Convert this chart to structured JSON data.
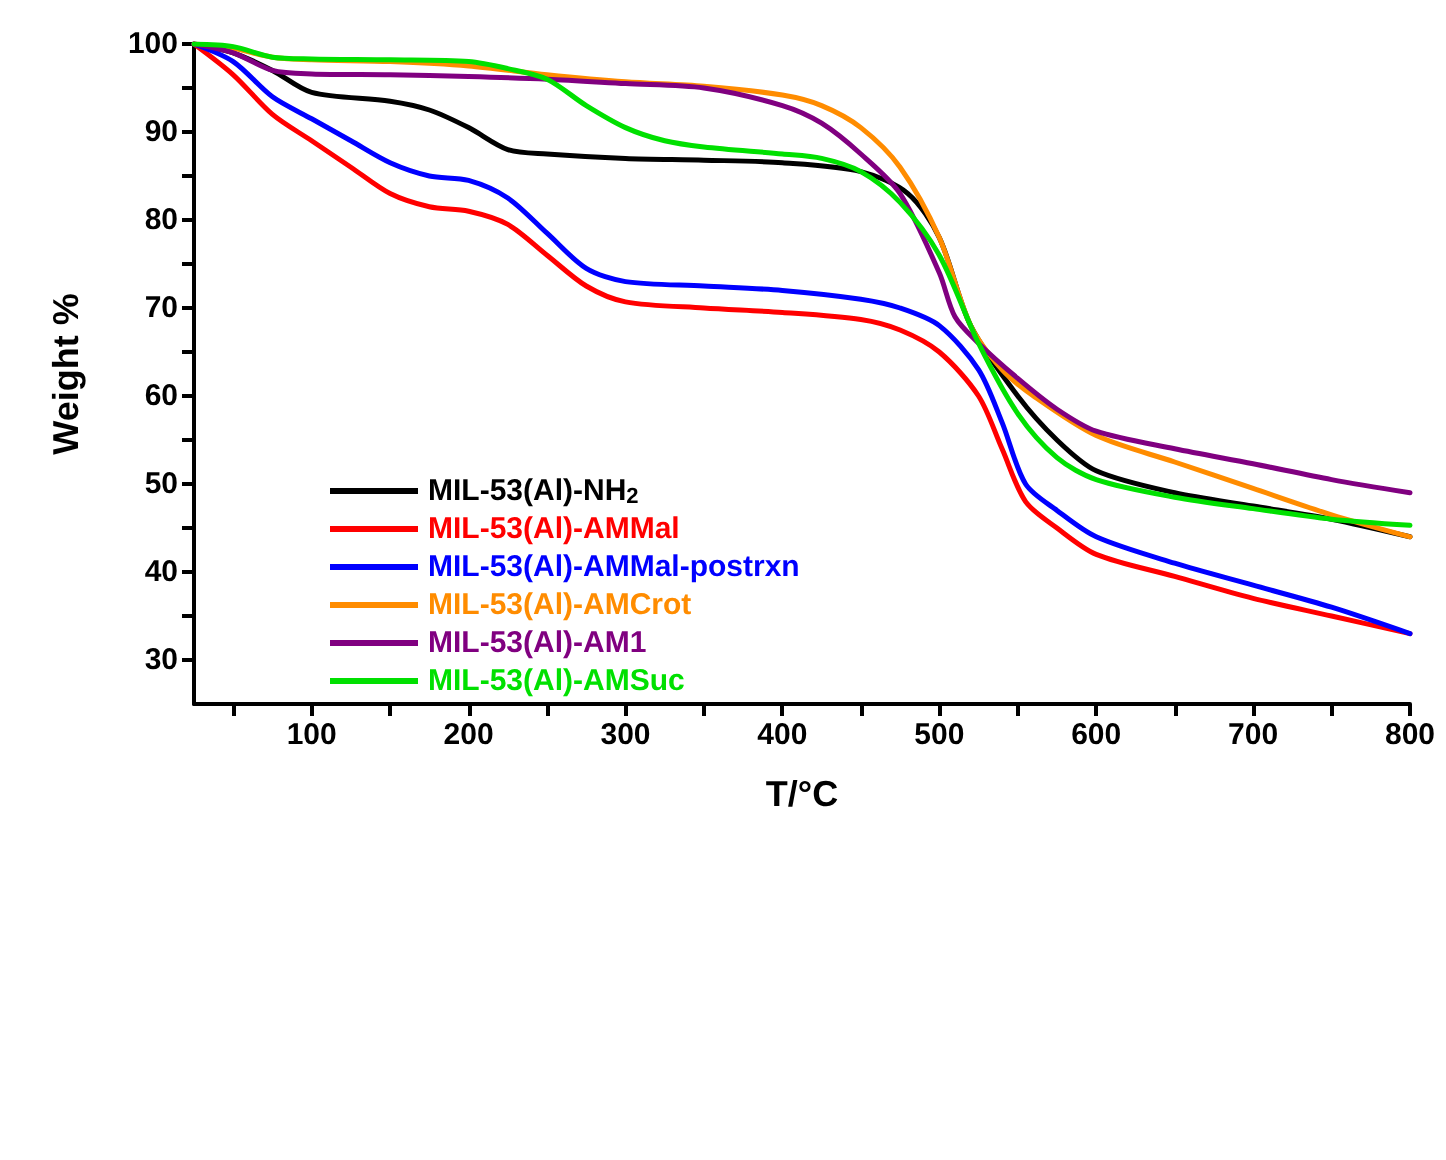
{
  "chart_data": {
    "type": "line",
    "xlabel": "T/°C",
    "ylabel": "Weight %",
    "xlim": [
      25,
      800
    ],
    "ylim": [
      25,
      100
    ],
    "xticks": [
      {
        "value": 50,
        "label": null
      },
      100,
      {
        "value": 150,
        "label": null
      },
      200,
      {
        "value": 250,
        "label": null
      },
      300,
      {
        "value": 350,
        "label": null
      },
      400,
      {
        "value": 450,
        "label": null
      },
      500,
      {
        "value": 550,
        "label": null
      },
      600,
      {
        "value": 650,
        "label": null
      },
      700,
      {
        "value": 750,
        "label": null
      },
      800
    ],
    "yticks": [
      30,
      {
        "value": 35,
        "label": null
      },
      40,
      {
        "value": 45,
        "label": null
      },
      50,
      {
        "value": 55,
        "label": null
      },
      60,
      {
        "value": 65,
        "label": null
      },
      70,
      {
        "value": 75,
        "label": null
      },
      80,
      {
        "value": 85,
        "label": null
      },
      90,
      {
        "value": 95,
        "label": null
      },
      100
    ],
    "grid": false,
    "legend": "bottom left",
    "marker": "none",
    "line_style": "solid",
    "series": [
      {
        "name": "MIL-53(Al)-NH$_{2}$",
        "color": "#000000",
        "x": [
          25,
          50,
          75,
          100,
          150,
          175,
          200,
          225,
          250,
          300,
          350,
          400,
          450,
          480,
          500,
          520,
          550,
          575,
          600,
          650,
          700,
          750,
          800
        ],
        "values": [
          100,
          99,
          97,
          94.5,
          93.5,
          92.5,
          90.5,
          88,
          87.5,
          87,
          86.8,
          86.5,
          85.5,
          83,
          78,
          68,
          60,
          55,
          51.5,
          49,
          47.5,
          46,
          44
        ]
      },
      {
        "name": "MIL-53(Al)-AMMal",
        "color": "#ff0000",
        "x": [
          25,
          50,
          75,
          100,
          125,
          150,
          175,
          200,
          225,
          250,
          275,
          300,
          350,
          400,
          450,
          475,
          500,
          525,
          540,
          555,
          575,
          600,
          650,
          700,
          750,
          800
        ],
        "values": [
          100,
          96.5,
          92,
          89,
          86,
          83,
          81.5,
          81,
          79.5,
          76,
          72.5,
          70.7,
          70,
          69.5,
          68.7,
          67.5,
          65,
          60,
          54,
          48,
          45,
          42,
          39.5,
          37,
          35,
          33
        ]
      },
      {
        "name": "MIL-53(Al)-AMMal-postrxn",
        "color": "#0000ff",
        "x": [
          25,
          50,
          75,
          100,
          125,
          150,
          175,
          200,
          225,
          250,
          275,
          300,
          350,
          400,
          450,
          475,
          500,
          525,
          540,
          555,
          575,
          600,
          650,
          700,
          750,
          800
        ],
        "values": [
          100,
          98,
          94,
          91.5,
          89,
          86.5,
          85,
          84.5,
          82.5,
          78.5,
          74.5,
          73,
          72.5,
          72,
          71,
          70,
          68,
          63,
          57,
          50,
          47,
          44,
          41,
          38.5,
          36,
          33
        ]
      },
      {
        "name": "MIL-53(Al)-AMCrot",
        "color": "#ff8c00",
        "x": [
          25,
          50,
          75,
          100,
          150,
          200,
          250,
          300,
          350,
          400,
          425,
          450,
          475,
          500,
          520,
          540,
          560,
          600,
          650,
          700,
          750,
          800
        ],
        "values": [
          100,
          99.5,
          98.5,
          98.2,
          98,
          97.5,
          96.5,
          95.7,
          95.2,
          94.2,
          93,
          90.5,
          86,
          78,
          68,
          63,
          60,
          55.5,
          52.5,
          49.5,
          46.5,
          44
        ]
      },
      {
        "name": "MIL-53(Al)-AM1",
        "color": "#800080",
        "x": [
          25,
          50,
          75,
          100,
          150,
          200,
          250,
          300,
          350,
          400,
          425,
          450,
          475,
          500,
          510,
          525,
          550,
          575,
          600,
          650,
          700,
          750,
          800
        ],
        "values": [
          100,
          99,
          97,
          96.6,
          96.5,
          96.3,
          96,
          95.5,
          95,
          93,
          91,
          87.5,
          83,
          74,
          69,
          66,
          62,
          58.5,
          56,
          54,
          52.3,
          50.5,
          49
        ]
      },
      {
        "name": "MIL-53(Al)-AMSuc",
        "color": "#00e000",
        "x": [
          25,
          50,
          75,
          100,
          150,
          200,
          225,
          250,
          275,
          300,
          325,
          350,
          400,
          425,
          450,
          475,
          500,
          525,
          550,
          575,
          600,
          650,
          700,
          750,
          800
        ],
        "values": [
          100,
          99.7,
          98.5,
          98.3,
          98.2,
          98,
          97.2,
          96,
          93,
          90.5,
          89,
          88.3,
          87.5,
          87,
          85.5,
          82,
          76,
          66,
          58,
          53,
          50.5,
          48.5,
          47.2,
          46,
          45.3
        ]
      }
    ]
  }
}
